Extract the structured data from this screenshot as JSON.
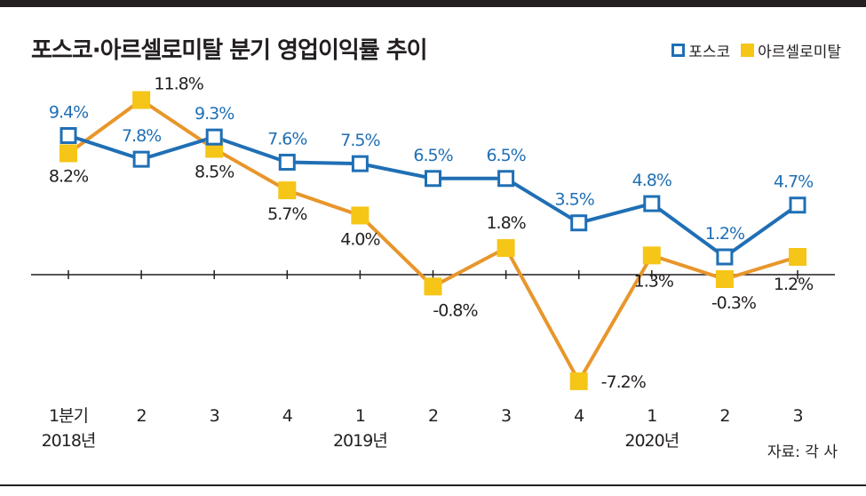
{
  "title": "포스코·아르셀로미탈 분기 영업이익률 추이",
  "source": "자료: 각 사",
  "colors": {
    "posco": "#1f6fb5",
    "arcelormittal": "#f5c518",
    "line_am": "#e8962a",
    "axis": "#231f20"
  },
  "chart_data": {
    "type": "line",
    "categories": [
      "1분기",
      "2",
      "3",
      "4",
      "1",
      "2",
      "3",
      "4",
      "1",
      "2",
      "3"
    ],
    "year_labels": [
      {
        "index": 0,
        "text": "2018년"
      },
      {
        "index": 4,
        "text": "2019년"
      },
      {
        "index": 8,
        "text": "2020년"
      }
    ],
    "series": [
      {
        "name": "포스코",
        "values": [
          9.4,
          7.8,
          9.3,
          7.6,
          7.5,
          6.5,
          6.5,
          3.5,
          4.8,
          1.2,
          4.7
        ],
        "labels": [
          "9.4%",
          "7.8%",
          "9.3%",
          "7.6%",
          "7.5%",
          "6.5%",
          "6.5%",
          "3.5%",
          "4.8%",
          "1.2%",
          "4.7%"
        ]
      },
      {
        "name": "아르셀로미탈",
        "values": [
          8.2,
          11.8,
          8.5,
          5.7,
          4.0,
          -0.8,
          1.8,
          -7.2,
          1.3,
          -0.3,
          1.2
        ],
        "labels": [
          "8.2%",
          "11.8%",
          "8.5%",
          "5.7%",
          "4.0%",
          "-0.8%",
          "1.8%",
          "-7.2%",
          "1.3%",
          "-0.3%",
          "1.2%"
        ]
      }
    ],
    "legend_position": "top-right",
    "grid": false
  }
}
